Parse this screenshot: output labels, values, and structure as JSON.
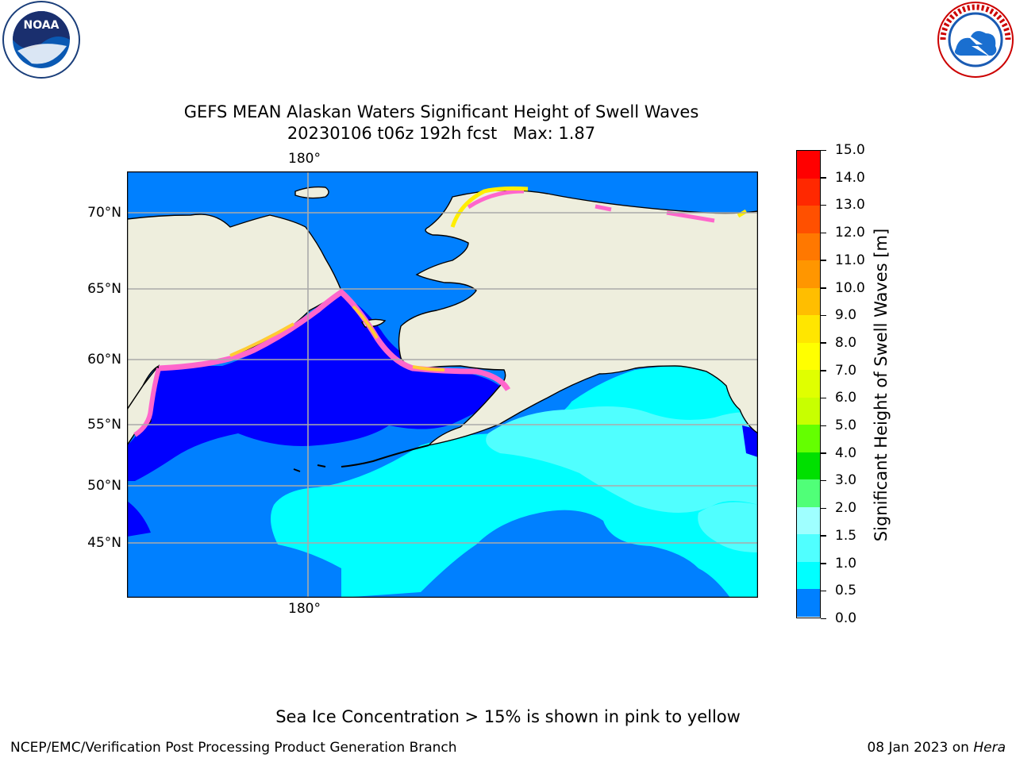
{
  "header": {
    "title_line1": "GEFS MEAN Alaskan Waters Significant Height of Swell Waves",
    "title_line2": "20230106 t06z 192h fcst   Max: 1.87",
    "left_logo": {
      "name": "noaa-logo",
      "text": "NOAA"
    },
    "right_logo": {
      "name": "nws-logo",
      "text": "NATIONAL WEATHER SERVICE"
    }
  },
  "map": {
    "lon_label_top": "180°",
    "lon_label_bottom": "180°",
    "lat_labels": [
      "70°N",
      "65°N",
      "60°N",
      "55°N",
      "50°N",
      "45°N"
    ],
    "colors": {
      "land": "#eeeedd",
      "ice_pink": "#ff66cc",
      "ice_yellow": "#ffff00",
      "grid": "#aaaaaa"
    }
  },
  "colorbar": {
    "label": "Significant Height of Swell Waves [m]",
    "ticks": [
      "15.0",
      "14.0",
      "13.0",
      "12.0",
      "11.0",
      "10.0",
      "9.0",
      "8.0",
      "7.0",
      "6.0",
      "5.0",
      "4.0",
      "3.0",
      "2.0",
      "1.5",
      "1.0",
      "0.5",
      "0.0"
    ],
    "colors": [
      "#ff0000",
      "#ff2800",
      "#ff5000",
      "#ff7800",
      "#ff9600",
      "#ffbe00",
      "#ffe600",
      "#ffff00",
      "#e0ff00",
      "#c8ff00",
      "#64ff00",
      "#00e000",
      "#50ff78",
      "#9fffff",
      "#50ffff",
      "#00ffff",
      "#0080ff",
      "#0000ff"
    ]
  },
  "footer": {
    "note": "Sea Ice Concentration > 15% is shown in pink to yellow",
    "credit": "NCEP/EMC/Verification Post Processing Product Generation Branch",
    "date": "08 Jan 2023 on",
    "host": "Hera"
  }
}
